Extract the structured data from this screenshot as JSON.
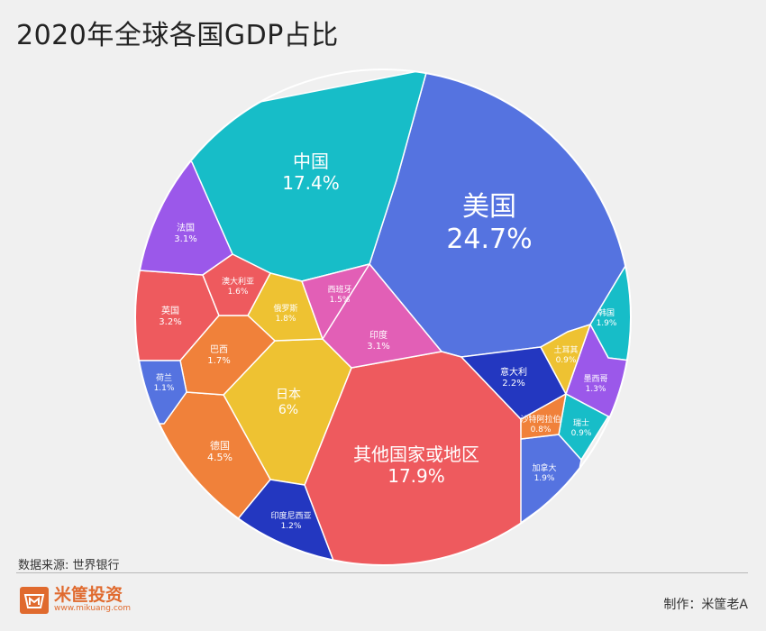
{
  "title": "2020年全球各国GDP占比",
  "source": "数据来源: 世界银行",
  "credit": "制作：米筐老A",
  "logo": {
    "name": "米筐投资",
    "url": "www.mikuang.com",
    "icon": "basket-m-icon",
    "color": "#e06a2e"
  },
  "chart_data": {
    "type": "voronoi-treemap",
    "title": "2020年全球各国GDP占比",
    "unit": "%",
    "series": [
      {
        "name": "美国",
        "value": 24.7,
        "label": "24.7%",
        "color": "#5573e0"
      },
      {
        "name": "中国",
        "value": 17.4,
        "label": "17.4%",
        "color": "#17bdc8"
      },
      {
        "name": "其他国家或地区",
        "value": 17.9,
        "label": "17.9%",
        "color": "#ee5a5e"
      },
      {
        "name": "日本",
        "value": 6,
        "label": "6%",
        "color": "#eec232"
      },
      {
        "name": "德国",
        "value": 4.5,
        "label": "4.5%",
        "color": "#f0813a"
      },
      {
        "name": "英国",
        "value": 3.2,
        "label": "3.2%",
        "color": "#ee5a5e"
      },
      {
        "name": "法国",
        "value": 3.1,
        "label": "3.1%",
        "color": "#9b58ea"
      },
      {
        "name": "印度",
        "value": 3.1,
        "label": "3.1%",
        "color": "#e25fb6"
      },
      {
        "name": "意大利",
        "value": 2.2,
        "label": "2.2%",
        "color": "#2337c0"
      },
      {
        "name": "韩国",
        "value": 1.9,
        "label": "1.9%",
        "color": "#17bdc8"
      },
      {
        "name": "加拿大",
        "value": 1.9,
        "label": "1.9%",
        "color": "#5573e0"
      },
      {
        "name": "俄罗斯",
        "value": 1.8,
        "label": "1.8%",
        "color": "#eec232"
      },
      {
        "name": "巴西",
        "value": 1.7,
        "label": "1.7%",
        "color": "#f0813a"
      },
      {
        "name": "澳大利亚",
        "value": 1.6,
        "label": "1.6%",
        "color": "#ee5a5e"
      },
      {
        "name": "西班牙",
        "value": 1.5,
        "label": "1.5%",
        "color": "#e25fb6"
      },
      {
        "name": "墨西哥",
        "value": 1.3,
        "label": "1.3%",
        "color": "#9b58ea"
      },
      {
        "name": "印度尼西亚",
        "value": 1.2,
        "label": "1.2%",
        "color": "#2337c0"
      },
      {
        "name": "荷兰",
        "value": 1.1,
        "label": "1.1%",
        "color": "#5573e0"
      },
      {
        "name": "土耳其",
        "value": 0.9,
        "label": "0.9%",
        "color": "#eec232"
      },
      {
        "name": "瑞士",
        "value": 0.9,
        "label": "0.9%",
        "color": "#17bdc8"
      },
      {
        "name": "沙特阿拉伯",
        "value": 0.8,
        "label": "0.8%",
        "color": "#f0813a"
      }
    ]
  }
}
